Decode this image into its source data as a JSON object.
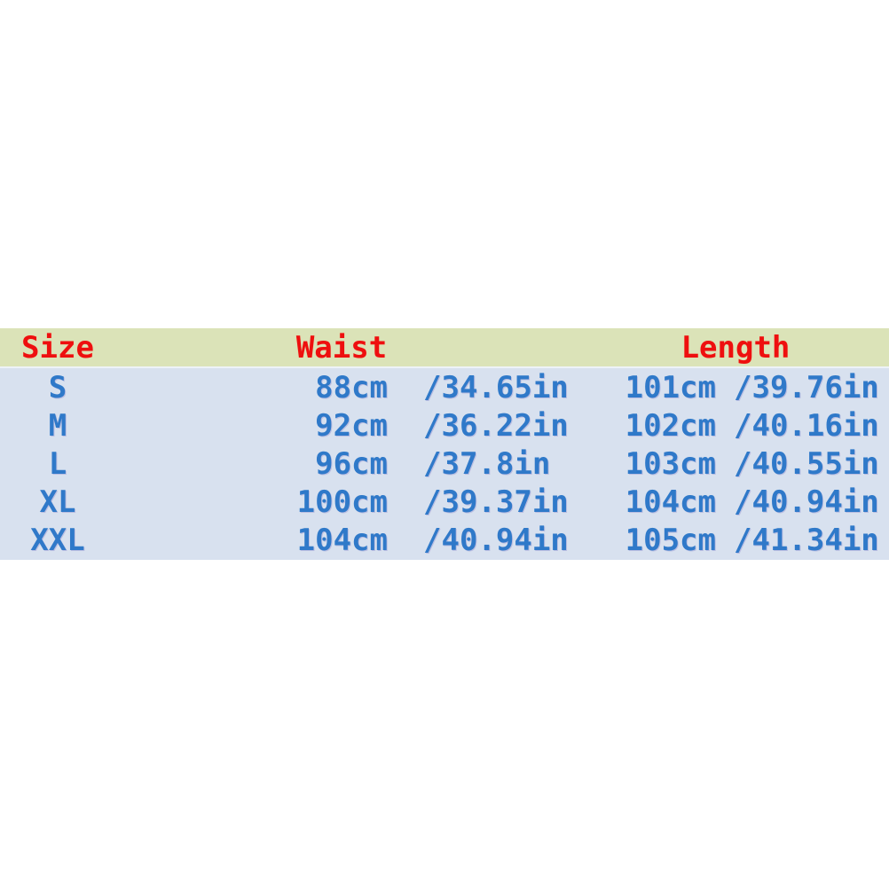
{
  "page": {
    "background": "#ffffff"
  },
  "size_chart": {
    "headers": {
      "size": "Size",
      "waist": "Waist",
      "length": "Length"
    },
    "rows": [
      {
        "size": "S",
        "waist_cm": "88cm",
        "waist_in": "/34.65in",
        "length_cm": "101cm",
        "length_in": "/39.76in"
      },
      {
        "size": "M",
        "waist_cm": "92cm",
        "waist_in": "/36.22in",
        "length_cm": "102cm",
        "length_in": "/40.16in"
      },
      {
        "size": "L",
        "waist_cm": "96cm",
        "waist_in": "/37.8in",
        "length_cm": "103cm",
        "length_in": "/40.55in"
      },
      {
        "size": "XL",
        "waist_cm": "100cm",
        "waist_in": "/39.37in",
        "length_cm": "104cm",
        "length_in": "/40.94in"
      },
      {
        "size": "XXL",
        "waist_cm": "104cm",
        "waist_in": "/40.94in",
        "length_cm": "105cm",
        "length_in": "/41.34in"
      }
    ],
    "colors": {
      "header_bg": "#dbe3b8",
      "header_text": "#ee0f0f",
      "row_bg": "#d8e1ef",
      "row_text": "#2f79c9"
    }
  },
  "chart_data": {
    "type": "table",
    "columns": [
      "Size",
      "Waist (cm)",
      "Waist (in)",
      "Length (cm)",
      "Length (in)"
    ],
    "rows": [
      [
        "S",
        88,
        34.65,
        101,
        39.76
      ],
      [
        "M",
        92,
        36.22,
        102,
        40.16
      ],
      [
        "L",
        96,
        37.8,
        103,
        40.55
      ],
      [
        "XL",
        100,
        39.37,
        104,
        40.94
      ],
      [
        "XXL",
        104,
        40.94,
        105,
        41.34
      ]
    ]
  }
}
